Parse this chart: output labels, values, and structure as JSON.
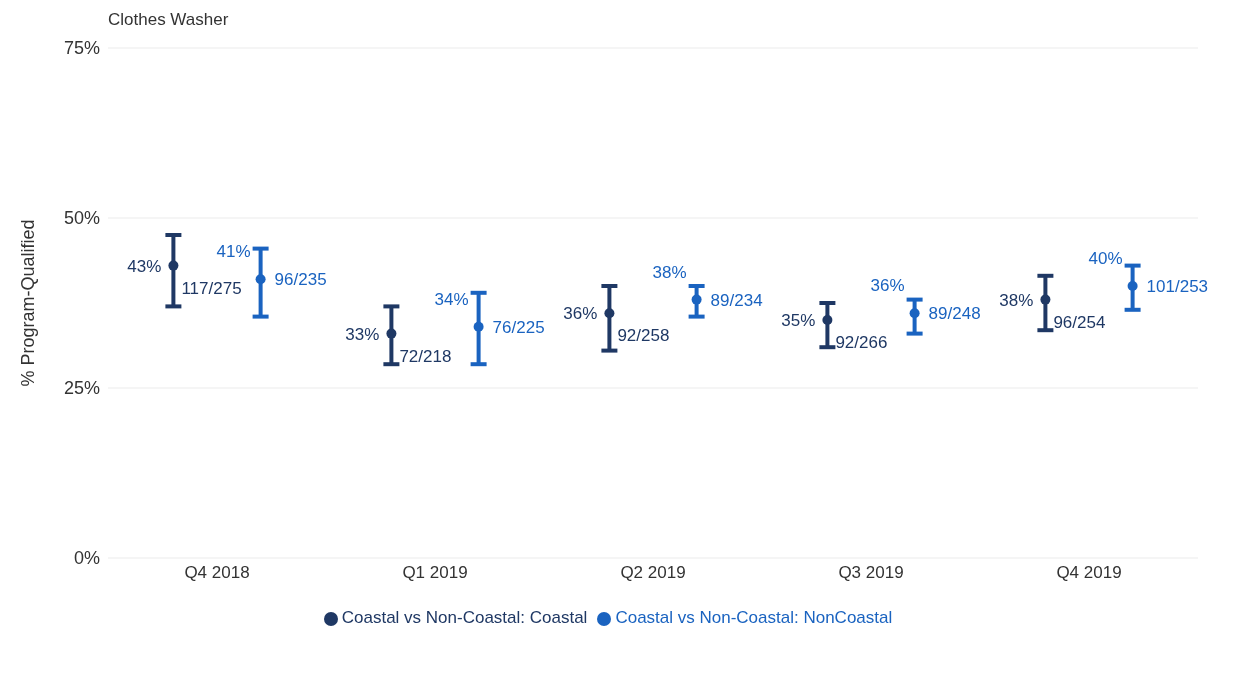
{
  "chart_data": {
    "type": "scatter",
    "title": "Clothes Washer",
    "ylabel": "% Program-Qualified",
    "categories": [
      "Q4 2018",
      "Q1 2019",
      "Q2 2019",
      "Q3 2019",
      "Q4 2019"
    ],
    "series": [
      {
        "name": "Coastal vs Non-Coastal: Coastal",
        "color": "#1f3864",
        "values": [
          43,
          33,
          36,
          35,
          38
        ],
        "errors": [
          [
            37,
            47.5
          ],
          [
            28.5,
            37
          ],
          [
            30.5,
            40
          ],
          [
            31,
            37.5
          ],
          [
            33.5,
            41.5
          ]
        ],
        "value_labels": [
          "43% 117/275",
          "33% 72/218",
          "36% 92/258",
          "35% 92/266",
          "38% 96/254"
        ]
      },
      {
        "name": "Coastal vs Non-Coastal: NonCoastal",
        "color": "#1a63c0",
        "values": [
          41,
          34,
          38,
          36,
          40
        ],
        "errors": [
          [
            35.5,
            45.5
          ],
          [
            28.5,
            39
          ],
          [
            35.5,
            40
          ],
          [
            33,
            38
          ],
          [
            36.5,
            43
          ]
        ],
        "value_labels": [
          "41% 96/235",
          "34% 76/225",
          "38% 89/234",
          "36% 89/248",
          "40% 101/253"
        ]
      }
    ],
    "ylim": [
      0,
      75
    ],
    "yticks": [
      {
        "value": 0,
        "label": "0%"
      },
      {
        "value": 25,
        "label": "25%"
      },
      {
        "value": 50,
        "label": "50%"
      },
      {
        "value": 75,
        "label": "75%"
      }
    ],
    "grid": "y",
    "legend": "bottom",
    "marker": "circle"
  }
}
